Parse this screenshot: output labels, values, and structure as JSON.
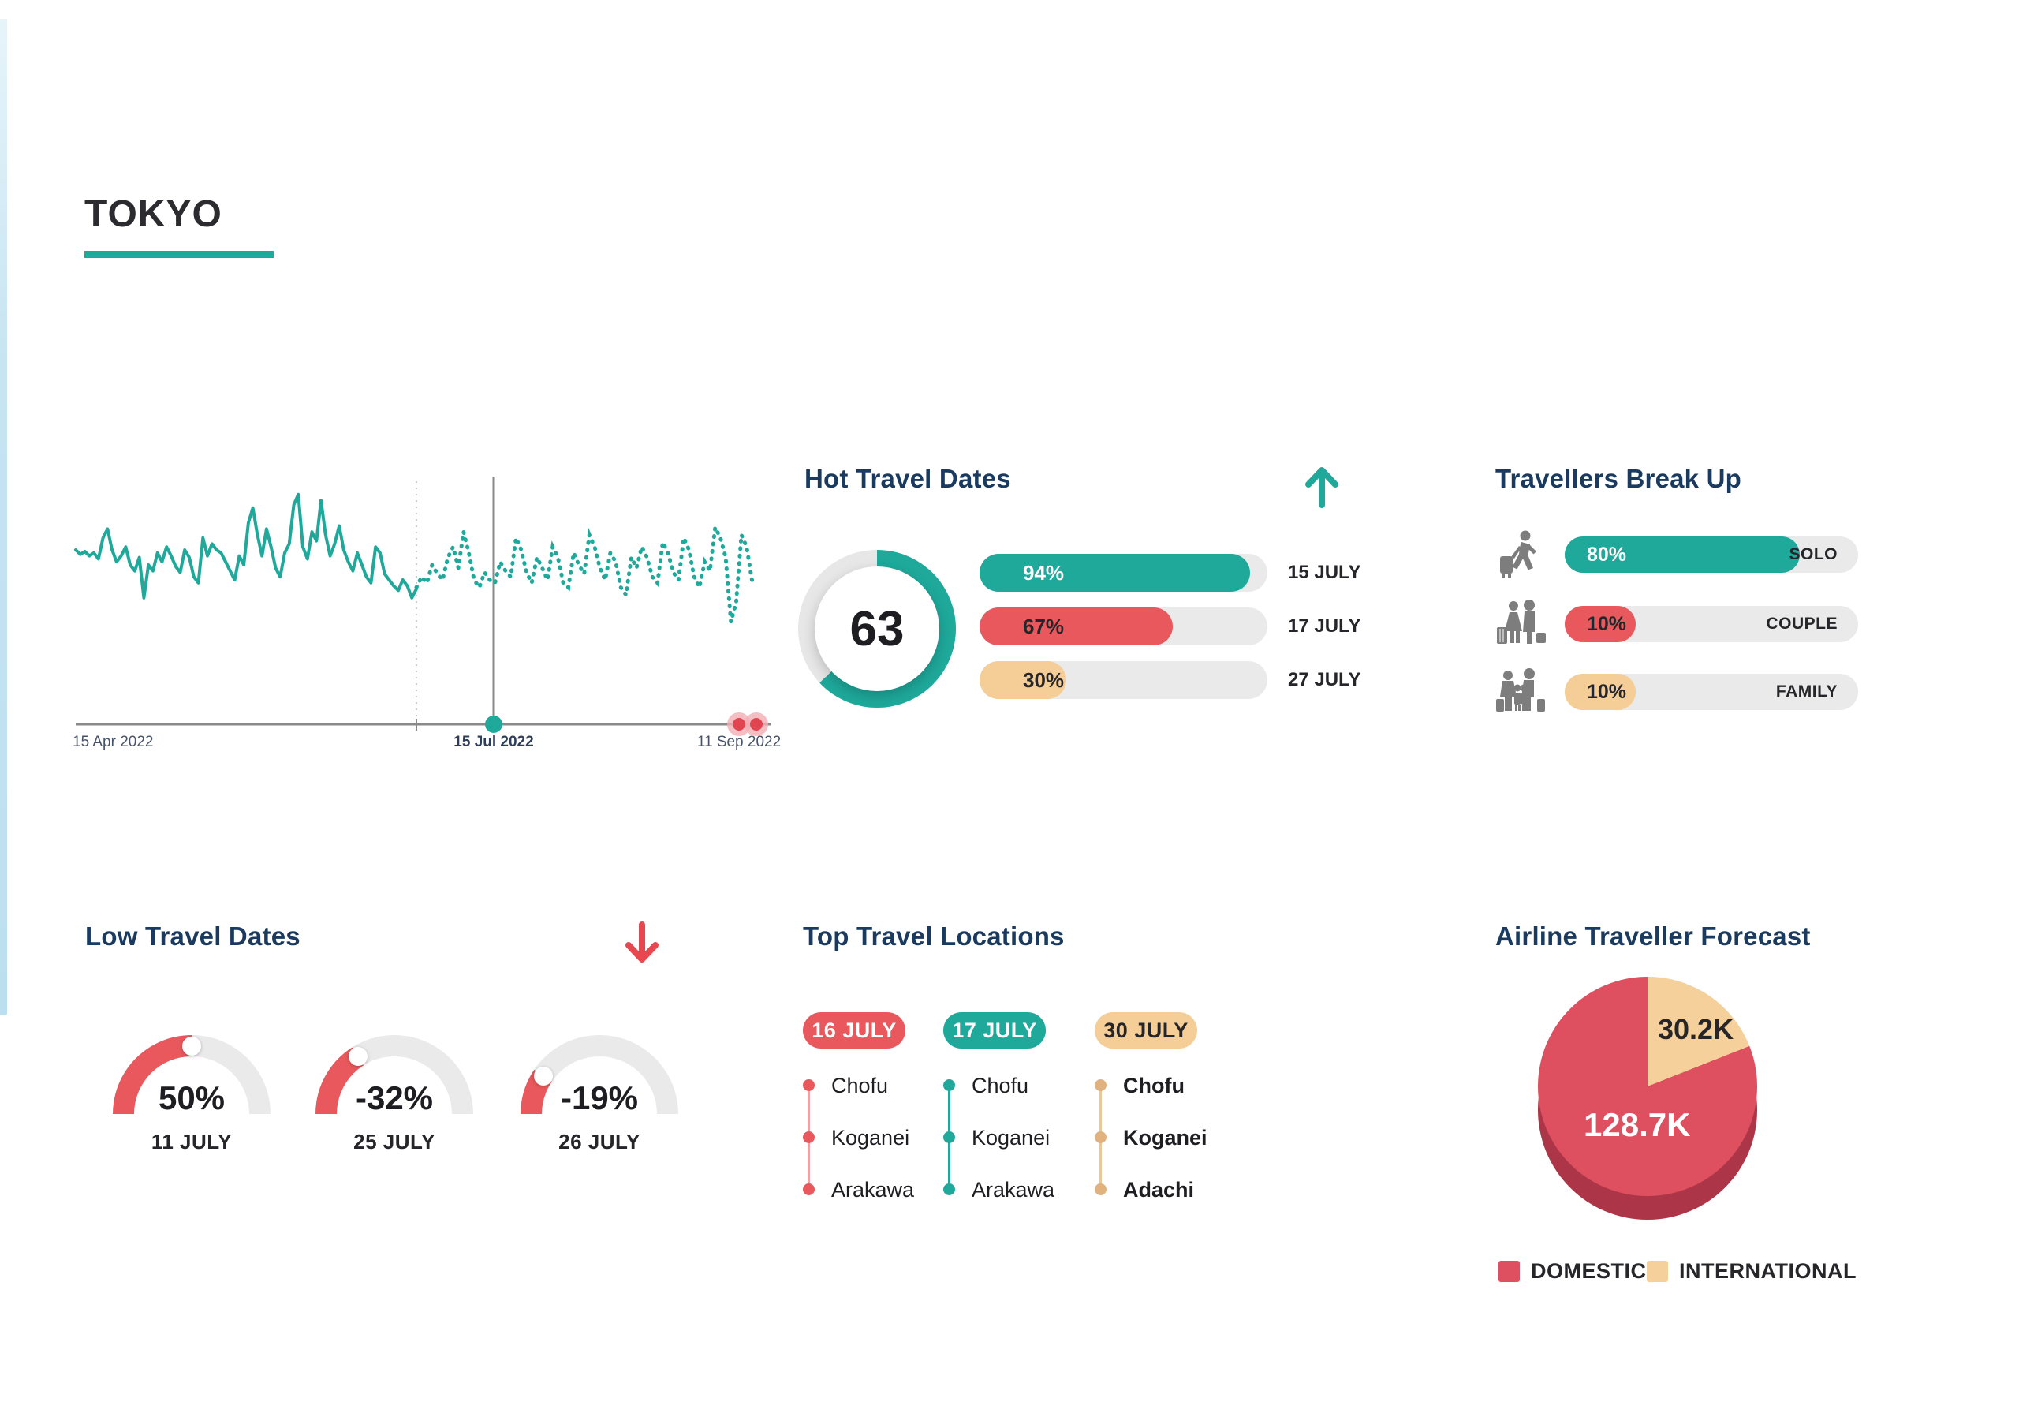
{
  "title": "TOKYO",
  "colors": {
    "teal": "#1EA99B",
    "red": "#E8585C",
    "tan": "#F5CD96",
    "track": "#EAEAEA",
    "navy": "#1A3A5F",
    "text_dark": "#26262A",
    "icon_gray": "#7D7D7D",
    "axis_gray": "#8A8A8A",
    "pie_domestic": "#DE4F5F",
    "pie_international": "#F5D09B",
    "pie_rim": "#AC3648"
  },
  "chart_data": [
    {
      "type": "line",
      "x_ticks": [
        "15 Apr 2022",
        "15 Jul 2022",
        "11 Sep 2022"
      ],
      "handle_date": "15 Jul 2022",
      "ylim": [
        0,
        100
      ],
      "series": [
        {
          "name": "actual",
          "style": "solid",
          "color": "#1EA99B",
          "values": [
            60,
            57,
            59,
            56,
            58,
            54,
            68,
            74,
            60,
            52,
            56,
            62,
            50,
            46,
            55,
            28,
            50,
            46,
            58,
            52,
            62,
            56,
            49,
            45,
            60,
            55,
            42,
            38,
            68,
            56,
            64,
            60,
            58,
            52,
            46,
            40,
            56,
            50,
            78,
            88,
            70,
            56,
            74,
            62,
            48,
            42,
            58,
            64,
            90,
            97,
            62,
            54,
            72,
            66,
            93,
            70,
            56,
            64,
            76,
            60,
            52,
            46,
            58,
            50,
            42,
            38,
            62,
            58,
            44,
            40,
            36,
            33,
            40,
            36,
            28,
            34
          ]
        },
        {
          "name": "forecast",
          "style": "dotted",
          "color": "#1EA99B",
          "values": [
            35,
            42,
            38,
            50,
            44,
            40,
            55,
            62,
            48,
            72,
            58,
            40,
            35,
            45,
            40,
            38,
            52,
            46,
            42,
            68,
            60,
            45,
            38,
            55,
            48,
            40,
            62,
            55,
            38,
            35,
            58,
            50,
            44,
            70,
            62,
            48,
            40,
            58,
            52,
            35,
            30,
            55,
            48,
            62,
            55,
            42,
            38,
            65,
            58,
            45,
            40,
            68,
            60,
            42,
            35,
            52,
            46,
            75,
            68,
            55,
            12,
            25,
            70,
            62,
            40,
            38
          ]
        }
      ]
    },
    {
      "type": "bar",
      "title": "Hot Travel Dates",
      "categories": [
        "15 JULY",
        "17 JULY",
        "27 JULY"
      ],
      "values": [
        94,
        67,
        30
      ],
      "score": 63
    },
    {
      "type": "bar",
      "title": "Travellers Break Up",
      "categories": [
        "SOLO",
        "COUPLE",
        "FAMILY"
      ],
      "values": [
        80,
        10,
        10
      ]
    },
    {
      "type": "gauge",
      "title": "Low Travel Dates",
      "categories": [
        "11 JULY",
        "25 JULY",
        "26 JULY"
      ],
      "values": [
        50,
        -32,
        -19
      ]
    },
    {
      "type": "table",
      "title": "Top Travel Locations",
      "columns": [
        "16 JULY",
        "17 JULY",
        "30 JULY"
      ],
      "rows": [
        [
          "Chofu",
          "Chofu",
          "Chofu"
        ],
        [
          "Koganei",
          "Koganei",
          "Koganei"
        ],
        [
          "Arakawa",
          "Arakawa",
          "Adachi"
        ]
      ]
    },
    {
      "type": "pie",
      "title": "Airline Traveller Forecast",
      "categories": [
        "DOMESTIC",
        "INTERNATIONAL"
      ],
      "values": [
        128700,
        30200
      ],
      "value_labels": [
        "128.7K",
        "30.2K"
      ]
    }
  ],
  "hot": {
    "title": "Hot Travel Dates",
    "arrow": "up",
    "score": "63",
    "score_pct": 63,
    "bars": [
      {
        "pct": 94,
        "label": "94%",
        "date": "15 JULY",
        "color": "teal"
      },
      {
        "pct": 67,
        "label": "67%",
        "date": "17 JULY",
        "color": "red"
      },
      {
        "pct": 30,
        "label": "30%",
        "date": "27 JULY",
        "color": "tan"
      }
    ]
  },
  "travellers": {
    "title": "Travellers Break Up",
    "rows": [
      {
        "pct": 80,
        "label": "80%",
        "name": "SOLO",
        "icon": "solo-traveller",
        "color": "teal"
      },
      {
        "pct": 10,
        "label": "10%",
        "name": "COUPLE",
        "icon": "couple-travellers",
        "color": "red"
      },
      {
        "pct": 10,
        "label": "10%",
        "name": "FAMILY",
        "icon": "family-travellers",
        "color": "tan"
      }
    ]
  },
  "low": {
    "title": "Low Travel Dates",
    "arrow": "down",
    "gauges": [
      {
        "label": "50%",
        "value": 50,
        "date": "11 JULY"
      },
      {
        "label": "-32%",
        "value": -32,
        "date": "25 JULY"
      },
      {
        "label": "-19%",
        "value": -19,
        "date": "26 JULY"
      }
    ]
  },
  "locations": {
    "title": "Top Travel Locations",
    "columns": [
      {
        "date": "16 JULY",
        "color": "red",
        "items": [
          "Chofu",
          "Koganei",
          "Arakawa"
        ]
      },
      {
        "date": "17 JULY",
        "color": "teal",
        "items": [
          "Chofu",
          "Koganei",
          "Arakawa"
        ]
      },
      {
        "date": "30 JULY",
        "color": "tan",
        "items": [
          "Chofu",
          "Koganei",
          "Adachi"
        ]
      }
    ]
  },
  "forecast": {
    "title": "Airline Traveller Forecast",
    "slices": [
      {
        "name": "DOMESTIC",
        "value": 128700,
        "value_label": "128.7K",
        "color": "#DE4F5F"
      },
      {
        "name": "INTERNATIONAL",
        "value": 30200,
        "value_label": "30.2K",
        "color": "#F5D09B"
      }
    ]
  }
}
